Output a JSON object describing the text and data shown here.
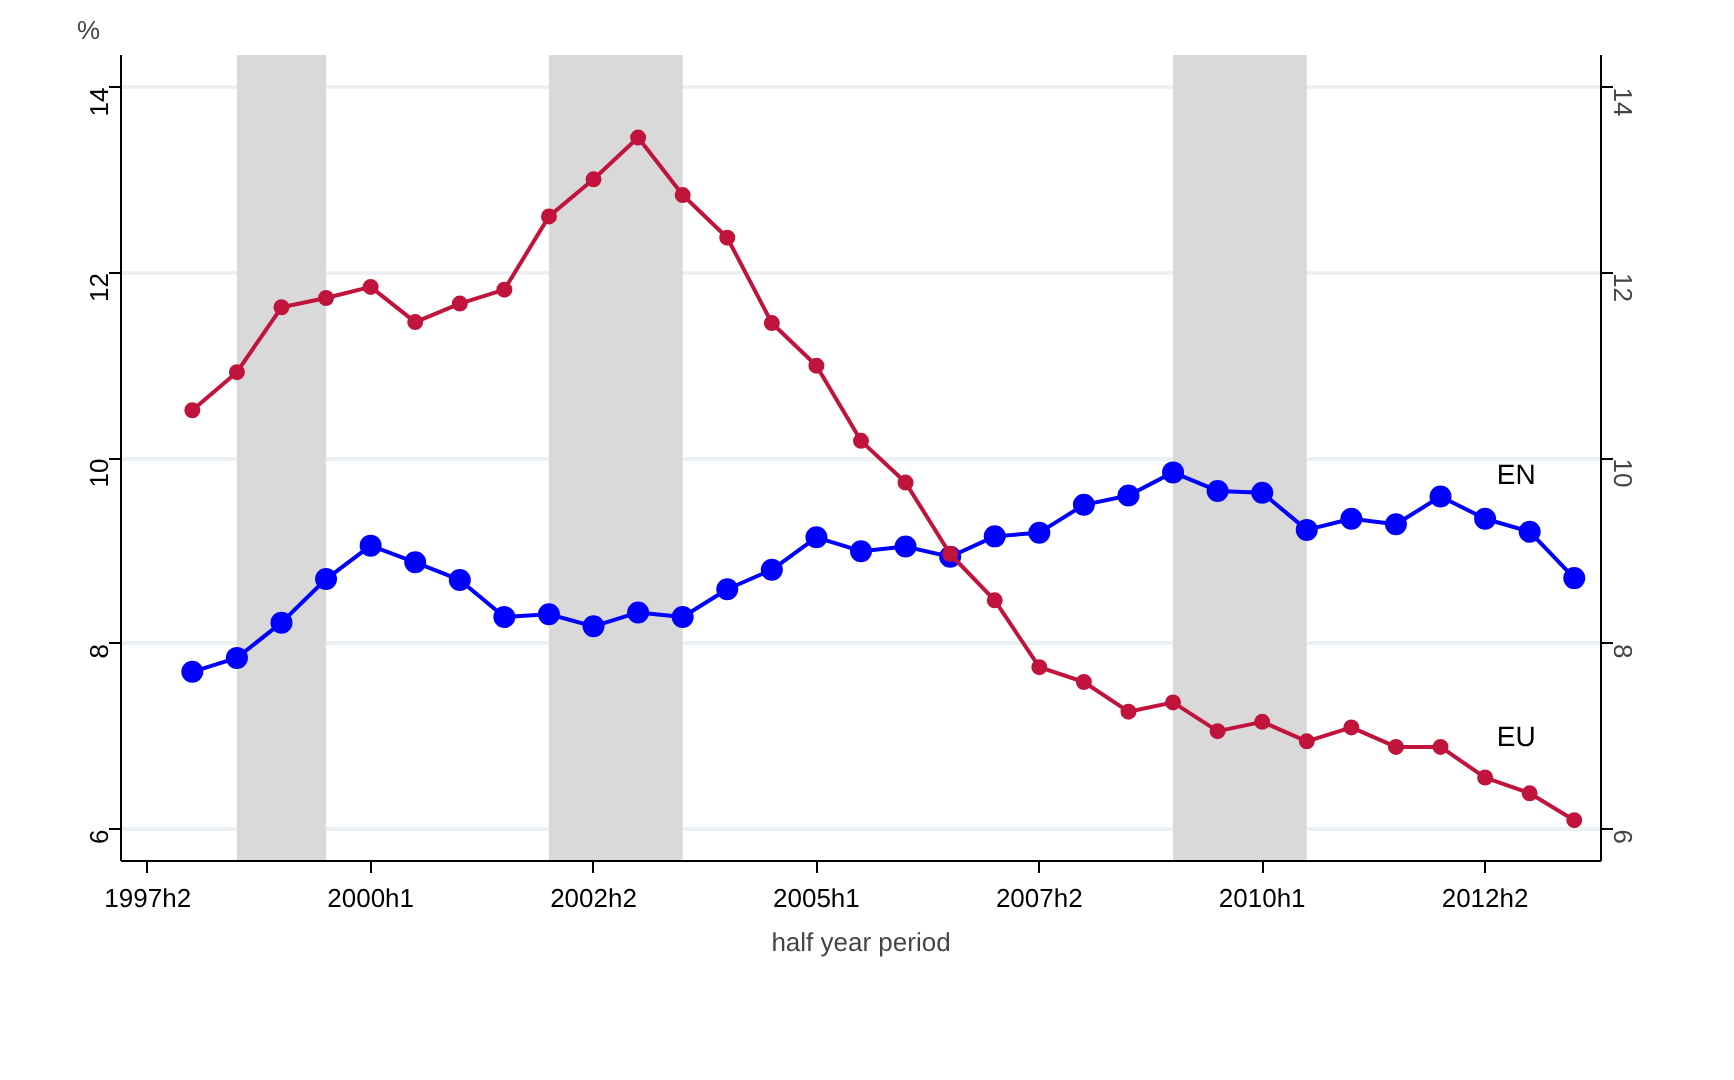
{
  "chart_data": {
    "type": "line",
    "xlabel": "half year period",
    "ylabel": "%",
    "categories": [
      "1997h2",
      null,
      null,
      null,
      null,
      "2000h1",
      null,
      null,
      null,
      null,
      "2002h2",
      null,
      null,
      null,
      null,
      "2005h1",
      null,
      null,
      null,
      null,
      "2007h2",
      null,
      null,
      null,
      null,
      "2010h1",
      null,
      null,
      null,
      null,
      "2012h2",
      null,
      null
    ],
    "series": [
      {
        "name": "EN",
        "color": "#0000ff",
        "values": [
          null,
          7.7,
          7.85,
          8.23,
          8.7,
          9.06,
          8.88,
          8.69,
          8.29,
          8.32,
          8.19,
          8.34,
          8.29,
          8.59,
          8.8,
          9.15,
          9.0,
          9.05,
          8.94,
          9.16,
          9.2,
          9.5,
          9.6,
          9.85,
          9.65,
          9.63,
          9.23,
          9.35,
          9.29,
          9.59,
          9.35,
          9.21,
          8.71
        ]
      },
      {
        "name": "EU",
        "color": "#c0143c",
        "values": [
          null,
          10.52,
          10.93,
          11.63,
          11.73,
          11.85,
          11.47,
          11.67,
          11.82,
          12.61,
          13.01,
          13.46,
          12.84,
          12.38,
          11.46,
          11.0,
          10.19,
          9.74,
          8.97,
          8.47,
          7.75,
          7.59,
          7.27,
          7.37,
          7.06,
          7.16,
          6.95,
          7.1,
          6.89,
          6.89,
          6.56,
          6.39,
          6.1
        ]
      }
    ],
    "ylim": [
      5.66,
      14.35
    ],
    "yticks": [
      6,
      8,
      10,
      12,
      14
    ],
    "y2lim": [
      5.66,
      14.35
    ],
    "y2ticks": [
      6,
      8,
      10,
      12,
      14
    ],
    "grid": "y",
    "marker": "circle",
    "line_style": "solid",
    "legend": false
  }
}
